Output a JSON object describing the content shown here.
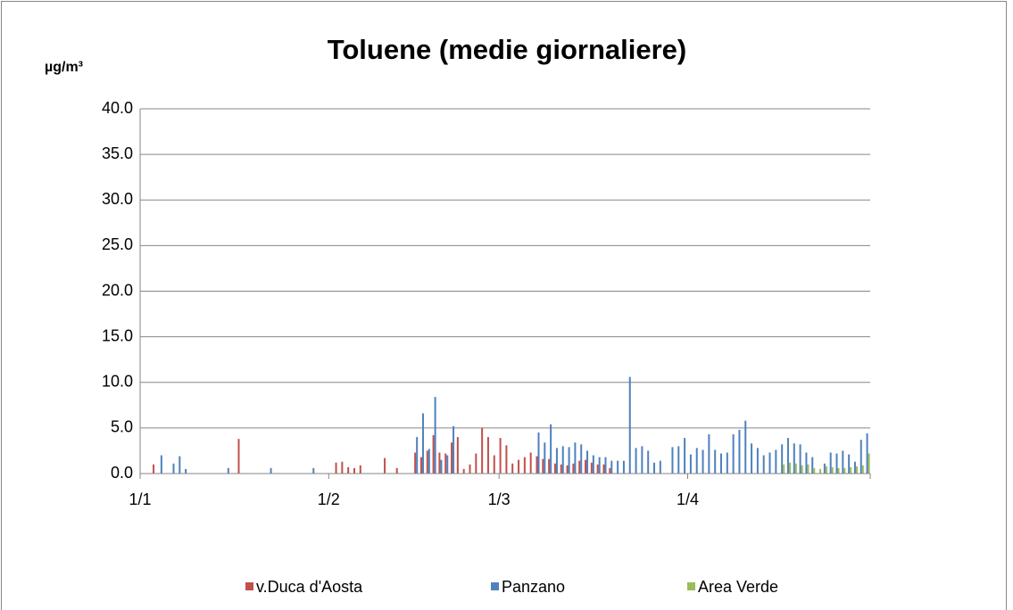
{
  "chart_data": {
    "type": "bar",
    "title": "Toluene (medie giornaliere)",
    "y_label": "µg/m³",
    "categories": [
      "1/1",
      null,
      null,
      null,
      null,
      null,
      null,
      null,
      null,
      null,
      null,
      null,
      null,
      null,
      null,
      null,
      null,
      null,
      null,
      null,
      null,
      null,
      null,
      null,
      null,
      null,
      null,
      null,
      null,
      null,
      null,
      "1/2",
      null,
      null,
      null,
      null,
      null,
      null,
      null,
      null,
      null,
      null,
      null,
      null,
      null,
      null,
      null,
      null,
      null,
      null,
      null,
      null,
      null,
      null,
      null,
      null,
      null,
      null,
      null,
      "1/3",
      null,
      null,
      null,
      null,
      null,
      null,
      null,
      null,
      null,
      null,
      null,
      null,
      null,
      null,
      null,
      null,
      null,
      null,
      null,
      null,
      null,
      null,
      null,
      null,
      null,
      null,
      null,
      null,
      null,
      null,
      "1/4",
      null,
      null,
      null,
      null,
      null,
      null,
      null,
      null,
      null,
      null,
      null,
      null,
      null,
      null,
      null,
      null,
      null,
      null,
      null,
      null,
      null,
      null,
      null,
      null,
      null,
      null,
      null,
      null,
      null
    ],
    "series": [
      {
        "name": "v.Duca d'Aosta",
        "color": "#c0504d",
        "values": [
          null,
          null,
          1.0,
          null,
          null,
          null,
          null,
          null,
          null,
          null,
          null,
          null,
          null,
          null,
          null,
          null,
          3.8,
          null,
          null,
          null,
          null,
          null,
          null,
          null,
          null,
          null,
          null,
          null,
          null,
          null,
          null,
          null,
          1.2,
          1.3,
          0.7,
          0.6,
          0.9,
          null,
          null,
          null,
          1.7,
          null,
          0.6,
          null,
          null,
          2.3,
          1.8,
          2.5,
          4.2,
          2.3,
          2.2,
          3.4,
          4.0,
          0.5,
          1.0,
          2.2,
          5.0,
          4.0,
          2.0,
          3.9,
          3.1,
          1.1,
          1.5,
          1.8,
          2.3,
          1.9,
          1.6,
          1.6,
          1.1,
          1.0,
          0.9,
          1.1,
          1.4,
          1.5,
          1.2,
          1.0,
          1.0,
          0.6,
          null,
          null,
          null,
          null,
          null,
          null,
          null,
          null,
          null,
          null,
          null,
          null,
          null,
          null,
          null,
          null,
          null,
          null,
          null,
          null,
          null,
          null,
          null,
          null,
          null,
          null,
          null,
          null,
          null,
          null,
          null,
          null,
          null,
          null,
          null,
          null,
          null,
          null,
          null,
          null,
          null,
          null
        ]
      },
      {
        "name": "Panzano",
        "color": "#4f81bd",
        "values": [
          null,
          null,
          null,
          2.0,
          null,
          1.1,
          1.9,
          0.5,
          null,
          null,
          null,
          null,
          null,
          null,
          0.6,
          null,
          null,
          null,
          null,
          null,
          null,
          0.6,
          null,
          null,
          null,
          null,
          null,
          null,
          0.6,
          null,
          null,
          null,
          null,
          null,
          null,
          null,
          null,
          null,
          null,
          null,
          null,
          null,
          null,
          null,
          null,
          4.0,
          6.6,
          2.7,
          8.4,
          1.5,
          2.0,
          5.2,
          null,
          null,
          null,
          null,
          null,
          null,
          null,
          null,
          null,
          null,
          null,
          null,
          null,
          4.5,
          3.4,
          5.4,
          2.8,
          3.0,
          2.9,
          3.4,
          3.2,
          2.5,
          2.0,
          1.8,
          1.8,
          1.4,
          1.4,
          1.4,
          10.6,
          2.8,
          3.0,
          2.5,
          1.2,
          1.4,
          null,
          2.9,
          3.0,
          3.9,
          2.1,
          2.8,
          2.6,
          4.3,
          2.6,
          2.2,
          2.3,
          4.3,
          4.8,
          5.8,
          3.3,
          2.8,
          2.0,
          2.3,
          2.6,
          3.2,
          3.9,
          3.3,
          3.2,
          2.3,
          1.8,
          null,
          1.1,
          2.3,
          2.2,
          2.5,
          2.1,
          1.3,
          3.7,
          4.4
        ]
      },
      {
        "name": "Area Verde",
        "color": "#9bbb59",
        "values": [
          null,
          null,
          null,
          null,
          null,
          null,
          null,
          null,
          null,
          null,
          null,
          null,
          null,
          null,
          null,
          null,
          null,
          null,
          null,
          null,
          null,
          null,
          null,
          null,
          null,
          null,
          null,
          null,
          null,
          null,
          null,
          null,
          null,
          null,
          null,
          null,
          null,
          null,
          null,
          null,
          null,
          null,
          null,
          null,
          null,
          null,
          null,
          null,
          null,
          null,
          null,
          null,
          null,
          null,
          null,
          null,
          null,
          null,
          null,
          null,
          null,
          null,
          null,
          null,
          null,
          null,
          null,
          null,
          null,
          null,
          null,
          null,
          null,
          null,
          null,
          null,
          null,
          null,
          null,
          null,
          null,
          null,
          null,
          null,
          null,
          null,
          null,
          null,
          null,
          null,
          null,
          null,
          null,
          null,
          null,
          null,
          null,
          null,
          null,
          null,
          null,
          null,
          null,
          null,
          null,
          1.0,
          1.2,
          1.1,
          0.9,
          1.0,
          0.6,
          0.5,
          0.8,
          0.7,
          0.6,
          0.6,
          0.7,
          0.8,
          0.9,
          2.2
        ]
      }
    ],
    "ylim": [
      0,
      40
    ],
    "yticks": [
      {
        "value": 0,
        "label": "0.0"
      },
      {
        "value": 5,
        "label": "5.0"
      },
      {
        "value": 10,
        "label": "10.0"
      },
      {
        "value": 15,
        "label": "15.0"
      },
      {
        "value": 20,
        "label": "20.0"
      },
      {
        "value": 25,
        "label": "25.0"
      },
      {
        "value": 30,
        "label": "30.0"
      },
      {
        "value": 35,
        "label": "35.0"
      },
      {
        "value": 40,
        "label": "40.0"
      }
    ],
    "grid": true,
    "legend": "bottom"
  }
}
